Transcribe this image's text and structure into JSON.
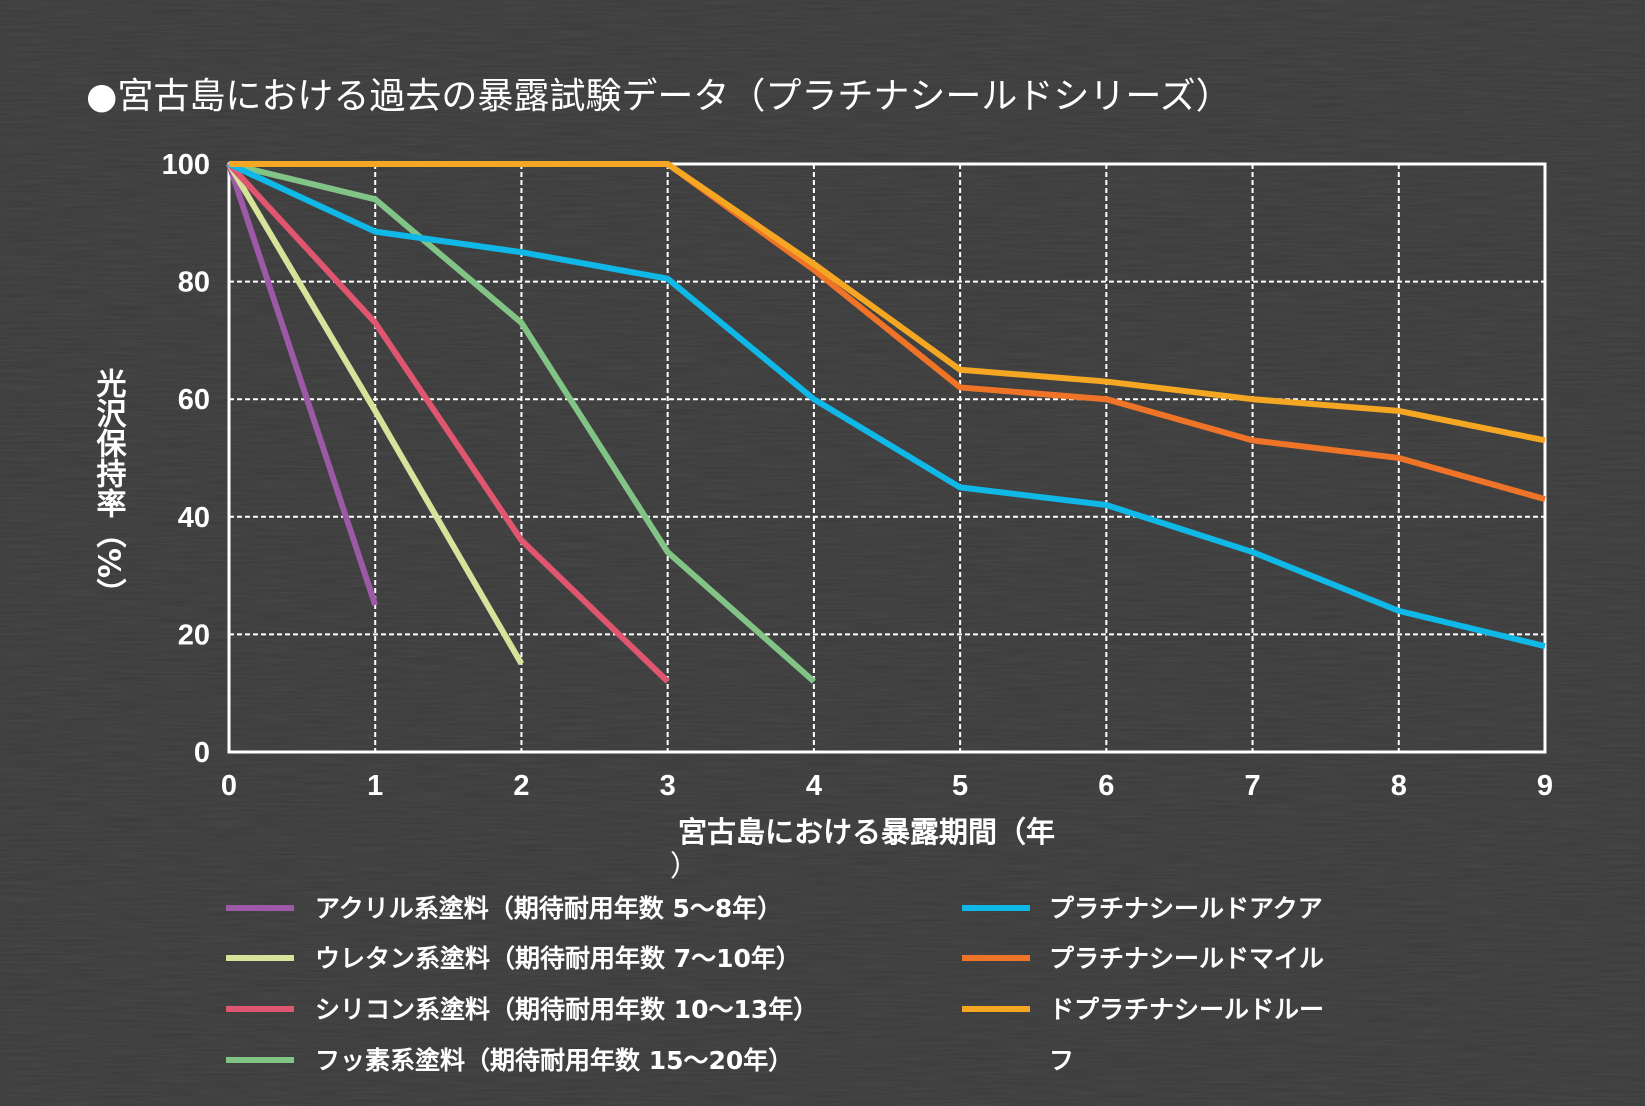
{
  "chart_data": {
    "type": "line",
    "title": "●宮古島における過去の暴露試験データ（プラチナシールドシリーズ）",
    "xlabel_line1": "宮古島における暴露期間（年",
    "xlabel_line2": "）",
    "ylabel": "光沢保持率（%）",
    "xlim": [
      0,
      9
    ],
    "ylim": [
      0,
      100
    ],
    "x_ticks": [
      0,
      1,
      2,
      3,
      4,
      5,
      6,
      7,
      8,
      9
    ],
    "y_ticks": [
      0,
      20,
      40,
      60,
      80,
      100
    ],
    "grid": true,
    "legend_placement": "bottom",
    "series": [
      {
        "name": "アクリル系塗料（期待耐用年数 5～8年）",
        "color": "#9b59a6",
        "x": [
          0,
          1
        ],
        "values": [
          100,
          25
        ]
      },
      {
        "name": "ウレタン系塗料（期待耐用年数 7～10年）",
        "color": "#d7e39a",
        "x": [
          0,
          1,
          2
        ],
        "values": [
          100,
          58,
          15
        ]
      },
      {
        "name": "シリコン系塗料（期待耐用年数 10～13年）",
        "color": "#e05570",
        "x": [
          0,
          1,
          2,
          3
        ],
        "values": [
          100,
          73,
          36,
          12
        ]
      },
      {
        "name": "フッ素系塗料（期待耐用年数 15～20年）",
        "color": "#82c486",
        "x": [
          0,
          1,
          2,
          3,
          4
        ],
        "values": [
          100,
          94,
          73,
          34,
          12
        ]
      },
      {
        "name": "プラチナシールドアクア",
        "color": "#10b8e8",
        "x": [
          0,
          1,
          2,
          3,
          4,
          5,
          6,
          7,
          8,
          9
        ],
        "values": [
          100,
          88.5,
          85,
          80.5,
          60,
          45,
          42,
          34,
          24,
          18
        ]
      },
      {
        "name": "プラチナシールドマイル",
        "color": "#f07427",
        "x": [
          0,
          1,
          2,
          3,
          4,
          5,
          6,
          7,
          8,
          9
        ],
        "values": [
          100,
          100,
          100,
          100,
          82,
          62,
          60,
          53,
          50,
          43
        ]
      },
      {
        "name": "ドプラチナシールドルー",
        "name_wrap": "フ",
        "color": "#f5a623",
        "x": [
          0,
          1,
          2,
          3,
          4,
          5,
          6,
          7,
          8,
          9
        ],
        "values": [
          100,
          100,
          100,
          100,
          83,
          65,
          63,
          60,
          58,
          53
        ]
      }
    ]
  }
}
